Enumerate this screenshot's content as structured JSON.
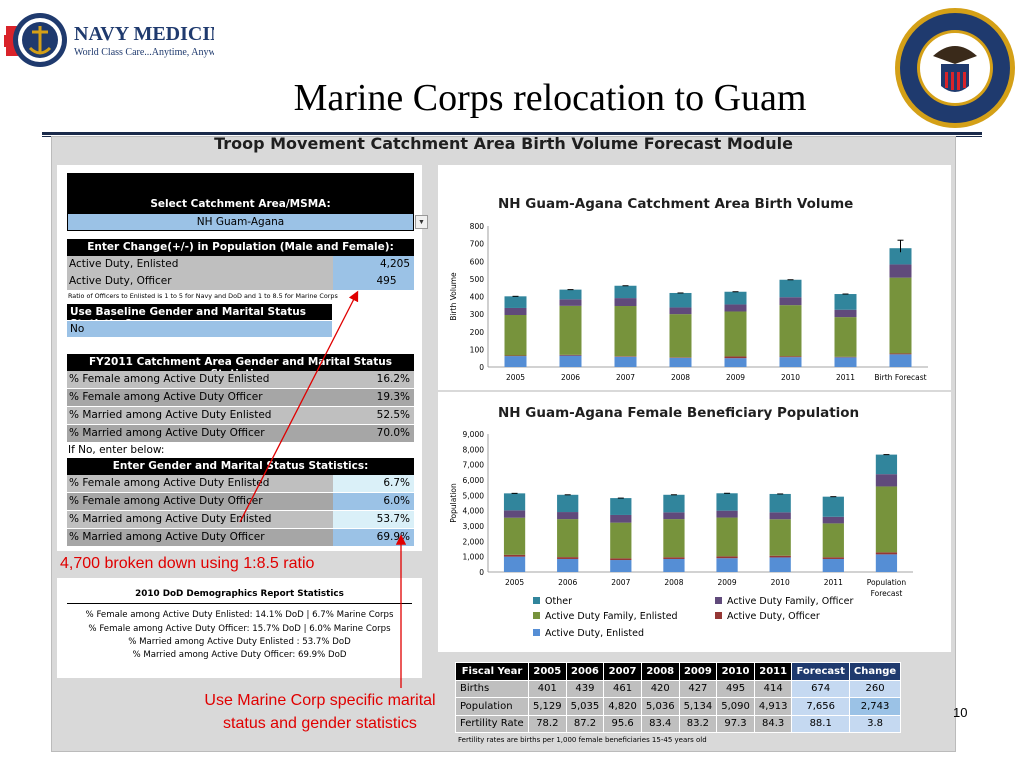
{
  "header": {
    "logo_brand": "NAVY MEDICINE",
    "logo_tagline": "World Class Care...Anytime, Anywhere",
    "seal_text": "DEPARTMENT OF THE NAVY • BUREAU OF MEDICINE AND SURGERY",
    "slide_title": "Marine Corps relocation to Guam"
  },
  "panel": {
    "title": "Troop Movement Catchment Area Birth Volume Forecast Module"
  },
  "inputs": {
    "select_label": "Select Catchment Area/MSMA:",
    "select_value": "NH Guam-Agana",
    "change_header": "Enter Change(+/-) in Population (Male and Female):",
    "ad_enlisted_label": "Active Duty, Enlisted",
    "ad_enlisted_value": "4,205",
    "ad_officer_label": "Active Duty, Officer",
    "ad_officer_value": "495",
    "ratio_note": "Ratio of Officers to Enlisted is 1 to 5 for Navy and DoD and 1 to 8.5 for Marine Corps",
    "baseline_header": "Use Baseline Gender and Marital Status Statistics?",
    "baseline_value": "No",
    "fy_header": "FY2011 Catchment Area Gender and Marital Status Statistics:",
    "fy_rows": [
      {
        "label": "% Female among Active Duty Enlisted",
        "value": "16.2%"
      },
      {
        "label": "% Female among Active Duty Officer",
        "value": "19.3%"
      },
      {
        "label": "% Married among Active Duty Enlisted",
        "value": "52.5%"
      },
      {
        "label": "% Married among Active Duty Officer",
        "value": "70.0%"
      }
    ],
    "if_no_text": "If No, enter below:",
    "enter_header": "Enter Gender and Marital Status Statistics:",
    "enter_rows": [
      {
        "label": "% Female among Active Duty Enlisted",
        "value": "6.7%"
      },
      {
        "label": "% Female among Active Duty Officer",
        "value": "6.0%"
      },
      {
        "label": "% Married among Active Duty Enlisted",
        "value": "53.7%"
      },
      {
        "label": "% Married among Active Duty Officer",
        "value": "69.9%"
      }
    ]
  },
  "demographics": {
    "title": "2010 DoD Demographics Report Statistics",
    "lines": [
      "% Female among Active Duty Enlisted:  14.1% DoD | 6.7% Marine Corps",
      "% Female among Active Duty Officer:    15.7% DoD | 6.0% Marine Corps",
      "% Married among Active Duty Enlisted : 53.7% DoD",
      "% Married among Active Duty Officer:   69.9% DoD"
    ]
  },
  "annotations": {
    "ratio_callout": "4,700 broken down using 1:8.5 ratio",
    "marine_callout": "Use Marine Corp specific marital status and gender statistics",
    "slide_number": "10"
  },
  "colors": {
    "other": "#31859c",
    "ad_family_officer": "#604a7b",
    "ad_family_enlisted": "#77933c",
    "ad_officer": "#953735",
    "ad_enlisted": "#558ed5"
  },
  "chart_data": [
    {
      "type": "bar",
      "stacked": true,
      "title": "NH Guam-Agana Catchment Area Birth Volume",
      "ylabel": "Birth Volume",
      "xlabel": "",
      "ylim": [
        0,
        800
      ],
      "yticks": [
        0,
        100,
        200,
        300,
        400,
        500,
        600,
        700,
        800
      ],
      "categories": [
        "2005",
        "2006",
        "2007",
        "2008",
        "2009",
        "2010",
        "2011",
        "Birth Forecast"
      ],
      "series": [
        {
          "name": "Active Duty, Enlisted",
          "values": [
            62,
            65,
            58,
            52,
            50,
            56,
            55,
            72
          ]
        },
        {
          "name": "Active Duty, Officer",
          "values": [
            3,
            4,
            3,
            3,
            10,
            5,
            3,
            5
          ]
        },
        {
          "name": "Active Duty Family, Enlisted",
          "values": [
            230,
            278,
            285,
            245,
            255,
            290,
            225,
            430
          ]
        },
        {
          "name": "Active Duty Family, Officer",
          "values": [
            40,
            37,
            45,
            38,
            40,
            45,
            42,
            75
          ]
        },
        {
          "name": "Other",
          "values": [
            66,
            55,
            70,
            82,
            72,
            99,
            89,
            92
          ]
        }
      ],
      "totals": [
        401,
        439,
        461,
        420,
        427,
        495,
        414,
        674
      ],
      "error_bar_index": 7
    },
    {
      "type": "bar",
      "stacked": true,
      "title": "NH Guam-Agana Female Beneficiary Population",
      "ylabel": "Population",
      "xlabel": "",
      "ylim": [
        0,
        9000
      ],
      "yticks": [
        0,
        1000,
        2000,
        3000,
        4000,
        5000,
        6000,
        7000,
        8000,
        9000
      ],
      "categories": [
        "2005",
        "2006",
        "2007",
        "2008",
        "2009",
        "2010",
        "2011",
        "Population Forecast"
      ],
      "series": [
        {
          "name": "Active Duty, Enlisted",
          "values": [
            1000,
            850,
            780,
            850,
            900,
            950,
            850,
            1150
          ]
        },
        {
          "name": "Active Duty, Officer",
          "values": [
            120,
            120,
            110,
            110,
            120,
            110,
            110,
            130
          ]
        },
        {
          "name": "Active Duty Family, Enlisted",
          "values": [
            2420,
            2480,
            2330,
            2490,
            2530,
            2380,
            2210,
            4300
          ]
        },
        {
          "name": "Active Duty Family, Officer",
          "values": [
            480,
            460,
            500,
            440,
            450,
            450,
            430,
            800
          ]
        },
        {
          "name": "Other",
          "values": [
            1109,
            1125,
            1100,
            1146,
            1134,
            1200,
            1313,
            1276
          ]
        }
      ],
      "totals": [
        5129,
        5035,
        4820,
        5036,
        5134,
        5090,
        4913,
        7656
      ],
      "legend": [
        "Other",
        "Active Duty Family, Officer",
        "Active Duty Family, Enlisted",
        "Active Duty, Officer",
        "Active Duty, Enlisted"
      ]
    },
    {
      "type": "table",
      "headers": [
        "Fiscal Year",
        "2005",
        "2006",
        "2007",
        "2008",
        "2009",
        "2010",
        "2011",
        "Forecast",
        "Change"
      ],
      "rows": [
        [
          "Births",
          "401",
          "439",
          "461",
          "420",
          "427",
          "495",
          "414",
          "674",
          "260"
        ],
        [
          "Population",
          "5,129",
          "5,035",
          "4,820",
          "5,036",
          "5,134",
          "5,090",
          "4,913",
          "7,656",
          "2,743"
        ],
        [
          "Fertility Rate",
          "78.2",
          "87.2",
          "95.6",
          "83.4",
          "83.2",
          "97.3",
          "84.3",
          "88.1",
          "3.8"
        ]
      ],
      "note": "Fertility rates are births per 1,000 female beneficiaries 15-45 years old"
    }
  ]
}
